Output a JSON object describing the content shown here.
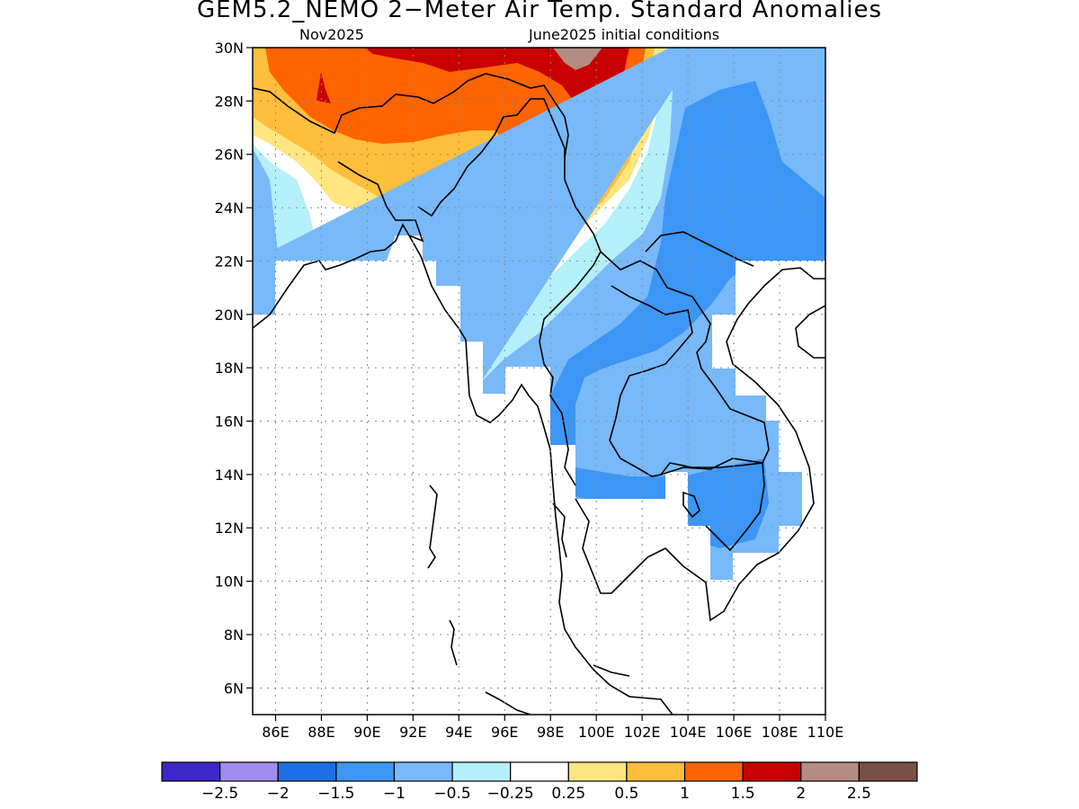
{
  "title": "GEM5.2_NEMO 2−Meter Air Temp. Standard Anomalies",
  "subtitle_left": "Nov2025",
  "subtitle_right": "June2025 initial conditions",
  "map": {
    "lon_range": [
      85,
      110
    ],
    "lat_range": [
      5,
      30
    ],
    "x_ticks": [
      "86E",
      "88E",
      "90E",
      "92E",
      "94E",
      "96E",
      "98E",
      "100E",
      "102E",
      "104E",
      "106E",
      "108E",
      "110E"
    ],
    "y_ticks": [
      "30N",
      "28N",
      "26N",
      "24N",
      "22N",
      "20N",
      "18N",
      "16N",
      "14N",
      "12N",
      "10N",
      "8N",
      "6N"
    ],
    "grid": "dotted",
    "colors": {
      "warm_25_05": "#ffe680",
      "warm_05_1": "#ffbe3c",
      "warm_1_15": "#ff6400",
      "warm_15_2": "#c80000",
      "warm_2_25": "#b48c82",
      "cool_025_05": "#b4f0fa",
      "cool_05_1": "#78b9fa",
      "cool_1_15": "#3c96f5"
    }
  },
  "legend": {
    "labels": [
      "−2.5",
      "−2",
      "−1.5",
      "−1",
      "−0.5",
      "−0.25",
      "0.25",
      "0.5",
      "1",
      "1.5",
      "2",
      "2.5"
    ],
    "colors": [
      "#3c28c8",
      "#a08cf0",
      "#1e6ee6",
      "#3c96f5",
      "#78b9fa",
      "#b4f0fa",
      "#ffffff",
      "#ffe680",
      "#ffbe3c",
      "#ff6400",
      "#c80000",
      "#b48c82",
      "#785046"
    ]
  }
}
